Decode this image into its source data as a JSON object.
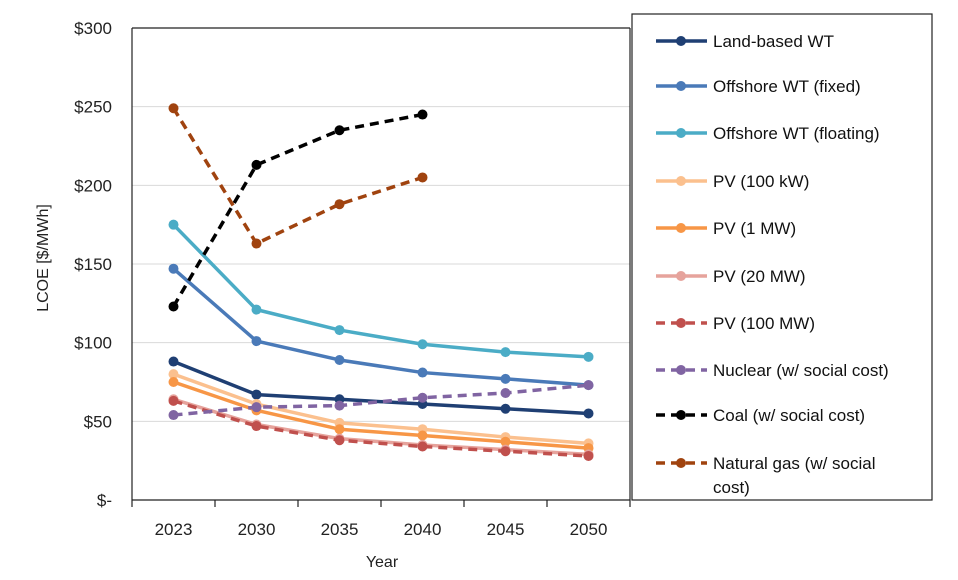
{
  "chart_data": {
    "type": "line",
    "xlabel": "Year",
    "ylabel": "LCOE [$/MWh]",
    "categories": [
      "2023",
      "2030",
      "2035",
      "2040",
      "2045",
      "2050"
    ],
    "ylim": [
      0,
      300
    ],
    "yticks": [
      {
        "value": 0,
        "label": "$-"
      },
      {
        "value": 50,
        "label": "$50"
      },
      {
        "value": 100,
        "label": "$100"
      },
      {
        "value": 150,
        "label": "$150"
      },
      {
        "value": 200,
        "label": "$200"
      },
      {
        "value": 250,
        "label": "$250"
      },
      {
        "value": 300,
        "label": "$300"
      }
    ],
    "grid": true,
    "legend_position": "right",
    "series": [
      {
        "name": "Land-based WT",
        "color": "#1f3f73",
        "dashed": false,
        "values": [
          88,
          67,
          64,
          61,
          58,
          55
        ]
      },
      {
        "name": "Offshore WT (fixed)",
        "color": "#4a7ab8",
        "dashed": false,
        "values": [
          147,
          101,
          89,
          81,
          77,
          73
        ]
      },
      {
        "name": "Offshore WT (floating)",
        "color": "#4bacc6",
        "dashed": false,
        "values": [
          175,
          121,
          108,
          99,
          94,
          91
        ]
      },
      {
        "name": "PV (100 kW)",
        "color": "#fbc08e",
        "dashed": false,
        "values": [
          80,
          61,
          49,
          45,
          40,
          36
        ]
      },
      {
        "name": "PV (1 MW)",
        "color": "#f79646",
        "dashed": false,
        "values": [
          75,
          57,
          45,
          41,
          37,
          33
        ]
      },
      {
        "name": "PV (20 MW)",
        "color": "#e6a39c",
        "dashed": false,
        "values": [
          64,
          48,
          39,
          35,
          32,
          29
        ]
      },
      {
        "name": "PV (100 MW)",
        "color": "#c0504d",
        "dashed": true,
        "values": [
          63,
          47,
          38,
          34,
          31,
          28
        ]
      },
      {
        "name": "Nuclear (w/ social cost)",
        "color": "#8064a2",
        "dashed": true,
        "values": [
          54,
          59,
          60,
          65,
          68,
          73
        ]
      },
      {
        "name": "Coal (w/ social cost)",
        "color": "#000000",
        "dashed": true,
        "values": [
          123,
          213,
          235,
          245,
          null,
          null
        ]
      },
      {
        "name": "Natural gas (w/ social cost)",
        "color": "#a0430f",
        "dashed": true,
        "values": [
          249,
          163,
          188,
          205,
          null,
          null
        ]
      }
    ]
  }
}
